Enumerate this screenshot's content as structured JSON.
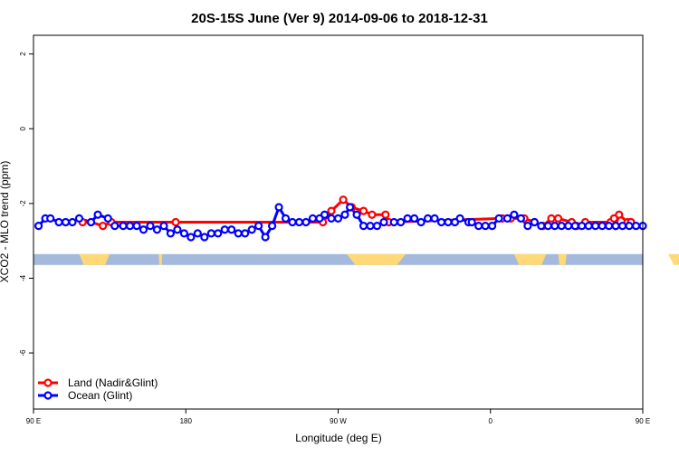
{
  "chart_data": {
    "type": "line",
    "title": "20S-15S June (Ver 9)   2014-09-06 to 2018-12-31",
    "xlabel": "Longitude (deg E)",
    "ylabel": "XCO2 - MLO trend (ppm)",
    "xlim": [
      90,
      450
    ],
    "ylim": [
      -7.5,
      2.5
    ],
    "x_ticks": [
      {
        "value": 90,
        "label": "90 E"
      },
      {
        "value": 180,
        "label": "180"
      },
      {
        "value": 270,
        "label": "90 W"
      },
      {
        "value": 360,
        "label": "0"
      },
      {
        "value": 450,
        "label": "90 E"
      },
      {
        "value": 540,
        "label": "180"
      }
    ],
    "y_ticks": [
      {
        "value": 2,
        "label": "2"
      },
      {
        "value": 0,
        "label": "0"
      },
      {
        "value": -2,
        "label": "-2"
      },
      {
        "value": -4,
        "label": "-4"
      },
      {
        "value": -6,
        "label": "-6"
      }
    ],
    "legend_position": "bottom-left",
    "series": [
      {
        "name": "Land (Nadir&Glint)",
        "color": "#ff0000",
        "x": [
          119,
          124,
          131,
          136,
          174,
          261,
          266,
          273,
          278,
          285,
          290,
          298,
          300,
          367,
          372,
          380,
          386,
          391,
          396,
          400,
          408,
          411,
          416,
          431,
          433,
          434,
          436,
          441,
          443,
          443
        ],
        "y": [
          -2.5,
          -2.5,
          -2.6,
          -2.5,
          -2.5,
          -2.5,
          -2.2,
          -1.9,
          -2.1,
          -2.2,
          -2.3,
          -2.3,
          -2.5,
          -2.4,
          -2.4,
          -2.4,
          -2.5,
          -2.6,
          -2.4,
          -2.4,
          -2.5,
          -2.6,
          -2.5,
          -2.5,
          -2.4,
          -2.6,
          -2.3,
          -2.5,
          -2.5,
          -2.5
        ]
      },
      {
        "name": "Ocean (Glint)",
        "color": "#0000ff",
        "x": [
          93,
          97,
          100,
          105,
          109,
          113,
          117,
          124,
          128,
          134,
          138,
          143,
          147,
          151,
          155,
          159,
          163,
          167,
          171,
          175,
          179,
          183,
          187,
          191,
          195,
          199,
          203,
          207,
          211,
          215,
          219,
          223,
          227,
          231,
          235,
          239,
          243,
          247,
          251,
          255,
          259,
          262,
          266,
          270,
          274,
          277,
          281,
          285,
          289,
          293,
          297,
          303,
          307,
          311,
          315,
          319,
          323,
          327,
          331,
          335,
          339,
          342,
          347,
          349,
          353,
          357,
          361,
          365,
          370,
          374,
          378,
          382,
          386,
          390,
          394,
          398,
          402,
          406,
          410,
          414,
          418,
          422,
          426,
          430,
          434,
          438,
          442,
          446,
          450
        ],
        "y": [
          -2.6,
          -2.4,
          -2.4,
          -2.5,
          -2.5,
          -2.5,
          -2.4,
          -2.5,
          -2.3,
          -2.4,
          -2.6,
          -2.6,
          -2.6,
          -2.6,
          -2.7,
          -2.6,
          -2.7,
          -2.6,
          -2.8,
          -2.7,
          -2.8,
          -2.9,
          -2.8,
          -2.9,
          -2.8,
          -2.8,
          -2.7,
          -2.7,
          -2.8,
          -2.8,
          -2.7,
          -2.6,
          -2.9,
          -2.6,
          -2.1,
          -2.4,
          -2.5,
          -2.5,
          -2.5,
          -2.4,
          -2.4,
          -2.3,
          -2.4,
          -2.4,
          -2.3,
          -2.1,
          -2.3,
          -2.6,
          -2.6,
          -2.6,
          -2.5,
          -2.5,
          -2.5,
          -2.4,
          -2.4,
          -2.5,
          -2.4,
          -2.4,
          -2.5,
          -2.5,
          -2.5,
          -2.4,
          -2.5,
          -2.5,
          -2.6,
          -2.6,
          -2.6,
          -2.4,
          -2.4,
          -2.3,
          -2.4,
          -2.6,
          -2.5,
          -2.6,
          -2.6,
          -2.6,
          -2.6,
          -2.6,
          -2.6,
          -2.6,
          -2.6,
          -2.6,
          -2.6,
          -2.6,
          -2.6,
          -2.6,
          -2.6,
          -2.6,
          -2.6
        ]
      }
    ],
    "surface_band": {
      "y": -3.5,
      "ocean_color": "#a4b9dc",
      "land_color": "#ffd978",
      "land_segments": [
        [
          117,
          135
        ],
        [
          164,
          166
        ],
        [
          275,
          310
        ],
        [
          374,
          393
        ],
        [
          400,
          405
        ],
        [
          465,
          487
        ]
      ]
    }
  }
}
